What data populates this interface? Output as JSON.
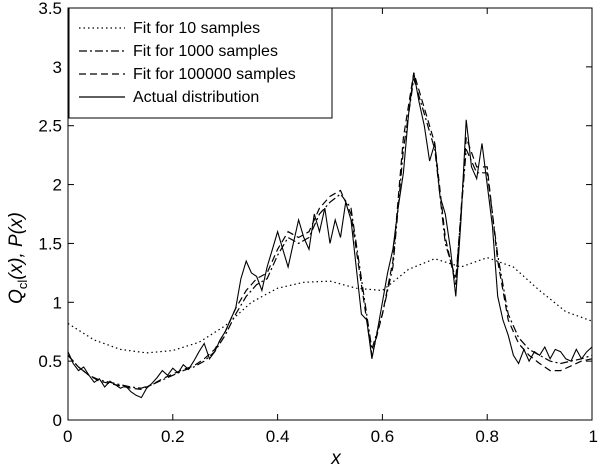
{
  "chart_data": {
    "type": "line",
    "xlabel": "x",
    "ylabel_main": "Q",
    "ylabel_sub": "cl",
    "ylabel_rest": "(x), P(x)",
    "xlim": [
      0,
      1
    ],
    "ylim": [
      0,
      3.5
    ],
    "xticks": [
      "0",
      "0.2",
      "0.4",
      "0.6",
      "0.8",
      "1"
    ],
    "yticks": [
      "0",
      "0.5",
      "1",
      "1.5",
      "2",
      "2.5",
      "3",
      "3.5"
    ],
    "grid": false,
    "legend_position": "top-left",
    "series": [
      {
        "name": "Fit for 10 samples",
        "style": "dotted",
        "x": [
          0,
          0.05,
          0.1,
          0.15,
          0.2,
          0.25,
          0.3,
          0.35,
          0.4,
          0.45,
          0.5,
          0.55,
          0.6,
          0.65,
          0.7,
          0.75,
          0.8,
          0.85,
          0.9,
          0.95,
          1
        ],
        "y": [
          0.82,
          0.68,
          0.6,
          0.57,
          0.59,
          0.66,
          0.8,
          1.0,
          1.12,
          1.17,
          1.18,
          1.12,
          1.1,
          1.28,
          1.37,
          1.3,
          1.38,
          1.3,
          1.1,
          0.92,
          0.84
        ]
      },
      {
        "name": "Fit for 1000 samples",
        "style": "dashdot",
        "x": [
          0,
          0.02,
          0.04,
          0.06,
          0.08,
          0.1,
          0.12,
          0.14,
          0.16,
          0.18,
          0.2,
          0.22,
          0.24,
          0.26,
          0.28,
          0.3,
          0.32,
          0.34,
          0.36,
          0.38,
          0.4,
          0.42,
          0.44,
          0.46,
          0.48,
          0.5,
          0.52,
          0.54,
          0.56,
          0.58,
          0.6,
          0.62,
          0.64,
          0.66,
          0.68,
          0.7,
          0.72,
          0.74,
          0.76,
          0.78,
          0.8,
          0.82,
          0.84,
          0.86,
          0.88,
          0.9,
          0.92,
          0.94,
          0.96,
          0.98,
          1
        ],
        "y": [
          0.55,
          0.45,
          0.38,
          0.34,
          0.32,
          0.3,
          0.28,
          0.27,
          0.3,
          0.34,
          0.38,
          0.42,
          0.45,
          0.5,
          0.58,
          0.72,
          0.9,
          1.05,
          1.15,
          1.2,
          1.4,
          1.55,
          1.5,
          1.55,
          1.75,
          1.85,
          1.92,
          1.8,
          1.2,
          0.6,
          0.9,
          1.3,
          2.3,
          2.9,
          2.6,
          2.3,
          1.5,
          1.2,
          2.3,
          2.1,
          2.1,
          1.4,
          0.9,
          0.7,
          0.6,
          0.55,
          0.5,
          0.48,
          0.5,
          0.52,
          0.55
        ]
      },
      {
        "name": "Fit for 100000 samples",
        "style": "dashed",
        "x": [
          0,
          0.02,
          0.04,
          0.06,
          0.08,
          0.1,
          0.12,
          0.14,
          0.16,
          0.18,
          0.2,
          0.22,
          0.24,
          0.26,
          0.28,
          0.3,
          0.32,
          0.34,
          0.36,
          0.38,
          0.4,
          0.42,
          0.44,
          0.46,
          0.48,
          0.5,
          0.52,
          0.54,
          0.56,
          0.58,
          0.6,
          0.62,
          0.64,
          0.66,
          0.68,
          0.7,
          0.72,
          0.74,
          0.76,
          0.78,
          0.8,
          0.82,
          0.84,
          0.86,
          0.88,
          0.9,
          0.92,
          0.94,
          0.96,
          0.98,
          1
        ],
        "y": [
          0.55,
          0.45,
          0.38,
          0.33,
          0.31,
          0.29,
          0.27,
          0.26,
          0.3,
          0.35,
          0.39,
          0.43,
          0.46,
          0.52,
          0.6,
          0.75,
          0.95,
          1.1,
          1.2,
          1.25,
          1.45,
          1.6,
          1.55,
          1.6,
          1.8,
          1.9,
          1.95,
          1.75,
          1.15,
          0.55,
          0.9,
          1.35,
          2.4,
          2.95,
          2.65,
          2.35,
          1.55,
          1.15,
          2.4,
          2.15,
          2.15,
          1.35,
          0.85,
          0.65,
          0.55,
          0.48,
          0.42,
          0.42,
          0.46,
          0.5,
          0.52
        ]
      },
      {
        "name": "Actual distribution",
        "style": "solid",
        "x": [
          0,
          0.01,
          0.02,
          0.03,
          0.04,
          0.05,
          0.06,
          0.07,
          0.08,
          0.09,
          0.1,
          0.11,
          0.12,
          0.13,
          0.14,
          0.15,
          0.16,
          0.17,
          0.18,
          0.19,
          0.2,
          0.21,
          0.22,
          0.23,
          0.24,
          0.25,
          0.26,
          0.27,
          0.28,
          0.29,
          0.3,
          0.31,
          0.32,
          0.33,
          0.34,
          0.35,
          0.36,
          0.37,
          0.38,
          0.39,
          0.4,
          0.41,
          0.42,
          0.43,
          0.44,
          0.45,
          0.46,
          0.47,
          0.48,
          0.49,
          0.5,
          0.51,
          0.52,
          0.53,
          0.54,
          0.55,
          0.56,
          0.57,
          0.58,
          0.59,
          0.6,
          0.61,
          0.62,
          0.63,
          0.64,
          0.65,
          0.66,
          0.67,
          0.68,
          0.69,
          0.7,
          0.71,
          0.72,
          0.73,
          0.74,
          0.75,
          0.76,
          0.77,
          0.78,
          0.79,
          0.8,
          0.81,
          0.82,
          0.83,
          0.84,
          0.85,
          0.86,
          0.87,
          0.88,
          0.89,
          0.9,
          0.91,
          0.92,
          0.93,
          0.94,
          0.95,
          0.96,
          0.97,
          0.98,
          0.99,
          1
        ],
        "y": [
          0.58,
          0.48,
          0.42,
          0.45,
          0.38,
          0.32,
          0.35,
          0.28,
          0.33,
          0.3,
          0.27,
          0.29,
          0.24,
          0.21,
          0.19,
          0.27,
          0.31,
          0.36,
          0.42,
          0.38,
          0.44,
          0.4,
          0.47,
          0.43,
          0.5,
          0.58,
          0.65,
          0.52,
          0.58,
          0.68,
          0.75,
          0.85,
          0.95,
          1.2,
          1.35,
          1.25,
          1.22,
          1.1,
          1.3,
          1.45,
          1.6,
          1.45,
          1.3,
          1.5,
          1.7,
          1.55,
          1.45,
          1.75,
          1.6,
          1.8,
          1.5,
          1.7,
          1.55,
          1.85,
          1.7,
          1.3,
          0.9,
          0.85,
          0.52,
          0.75,
          1.0,
          1.25,
          1.45,
          1.8,
          2.1,
          2.6,
          2.95,
          2.7,
          2.5,
          2.2,
          2.35,
          1.9,
          1.75,
          1.45,
          1.05,
          1.7,
          2.55,
          2.15,
          2.05,
          2.35,
          2.0,
          1.65,
          1.05,
          0.85,
          0.72,
          0.55,
          0.48,
          0.6,
          0.5,
          0.58,
          0.55,
          0.62,
          0.52,
          0.6,
          0.58,
          0.52,
          0.5,
          0.6,
          0.52,
          0.58,
          0.62
        ]
      }
    ]
  }
}
